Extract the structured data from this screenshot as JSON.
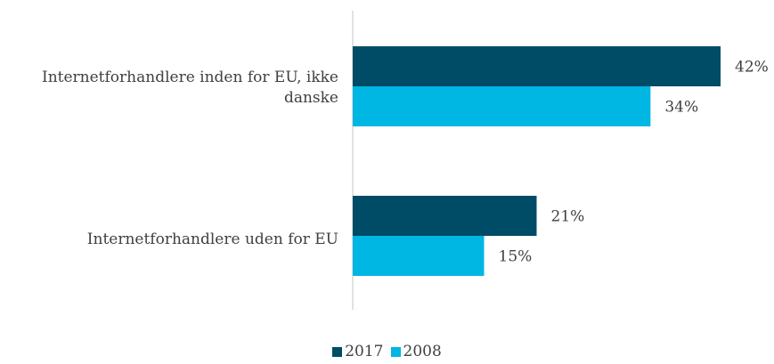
{
  "chart_data": {
    "type": "bar",
    "orientation": "horizontal",
    "categories": [
      "Internetforhandlere inden for EU, ikke danske",
      "Internetforhandlere uden for EU"
    ],
    "series": [
      {
        "name": "2017",
        "color": "#004b66",
        "values": [
          42,
          21
        ],
        "labels": [
          "42%",
          "21%"
        ]
      },
      {
        "name": "2008",
        "color": "#00b6e3",
        "values": [
          34,
          15
        ],
        "labels": [
          "34%",
          "15%"
        ]
      }
    ],
    "xlim": [
      0,
      42
    ],
    "grid": false,
    "legend": "bottom-center"
  }
}
